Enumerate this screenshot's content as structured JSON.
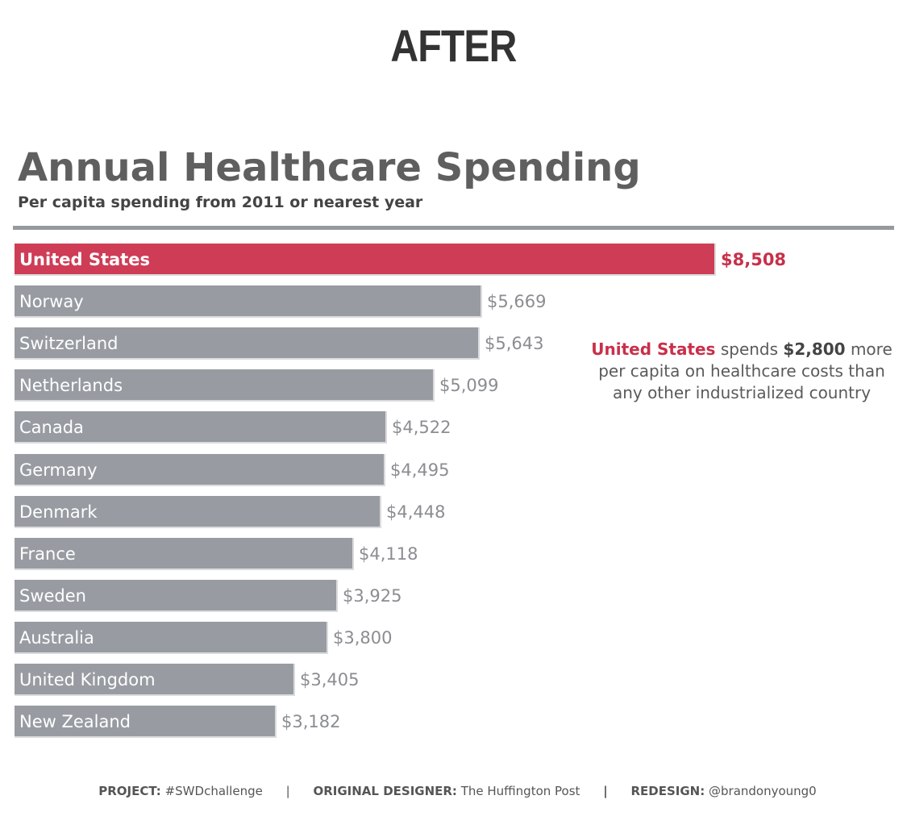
{
  "header": {
    "label": "AFTER"
  },
  "colors": {
    "highlight": "#cf3c55",
    "bar": "#989ca2",
    "value_text": "#8a8d91",
    "highlight_text": "#c8304a"
  },
  "chart_data": {
    "type": "bar",
    "orientation": "horizontal",
    "title": "Annual Healthcare Spending",
    "subtitle": "Per capita spending from 2011 or nearest year",
    "xlabel": "",
    "ylabel": "",
    "xlim": [
      0,
      8508
    ],
    "grid": false,
    "highlight_category": "United States",
    "categories": [
      "United States",
      "Norway",
      "Switzerland",
      "Netherlands",
      "Canada",
      "Germany",
      "Denmark",
      "France",
      "Sweden",
      "Australia",
      "United Kingdom",
      "New Zealand"
    ],
    "values": [
      8508,
      5669,
      5643,
      5099,
      4522,
      4495,
      4448,
      4118,
      3925,
      3800,
      3405,
      3182
    ],
    "value_labels": [
      "$8,508",
      "$5,669",
      "$5,643",
      "$5,099",
      "$4,522",
      "$4,495",
      "$4,448",
      "$4,118",
      "$3,925",
      "$3,800",
      "$3,405",
      "$3,182"
    ]
  },
  "annotation": {
    "country": "United States",
    "verb": "spends",
    "amount": "$2,800",
    "rest": "more per capita on healthcare costs than any other industrialized country"
  },
  "footer": {
    "project_key": "PROJECT:",
    "project_value": "#SWDchallenge",
    "designer_key": "ORIGINAL DESIGNER:",
    "designer_value": "The Huffington Post",
    "redesign_key": "REDESIGN:",
    "redesign_value": "@brandonyoung0",
    "separator": "|"
  }
}
